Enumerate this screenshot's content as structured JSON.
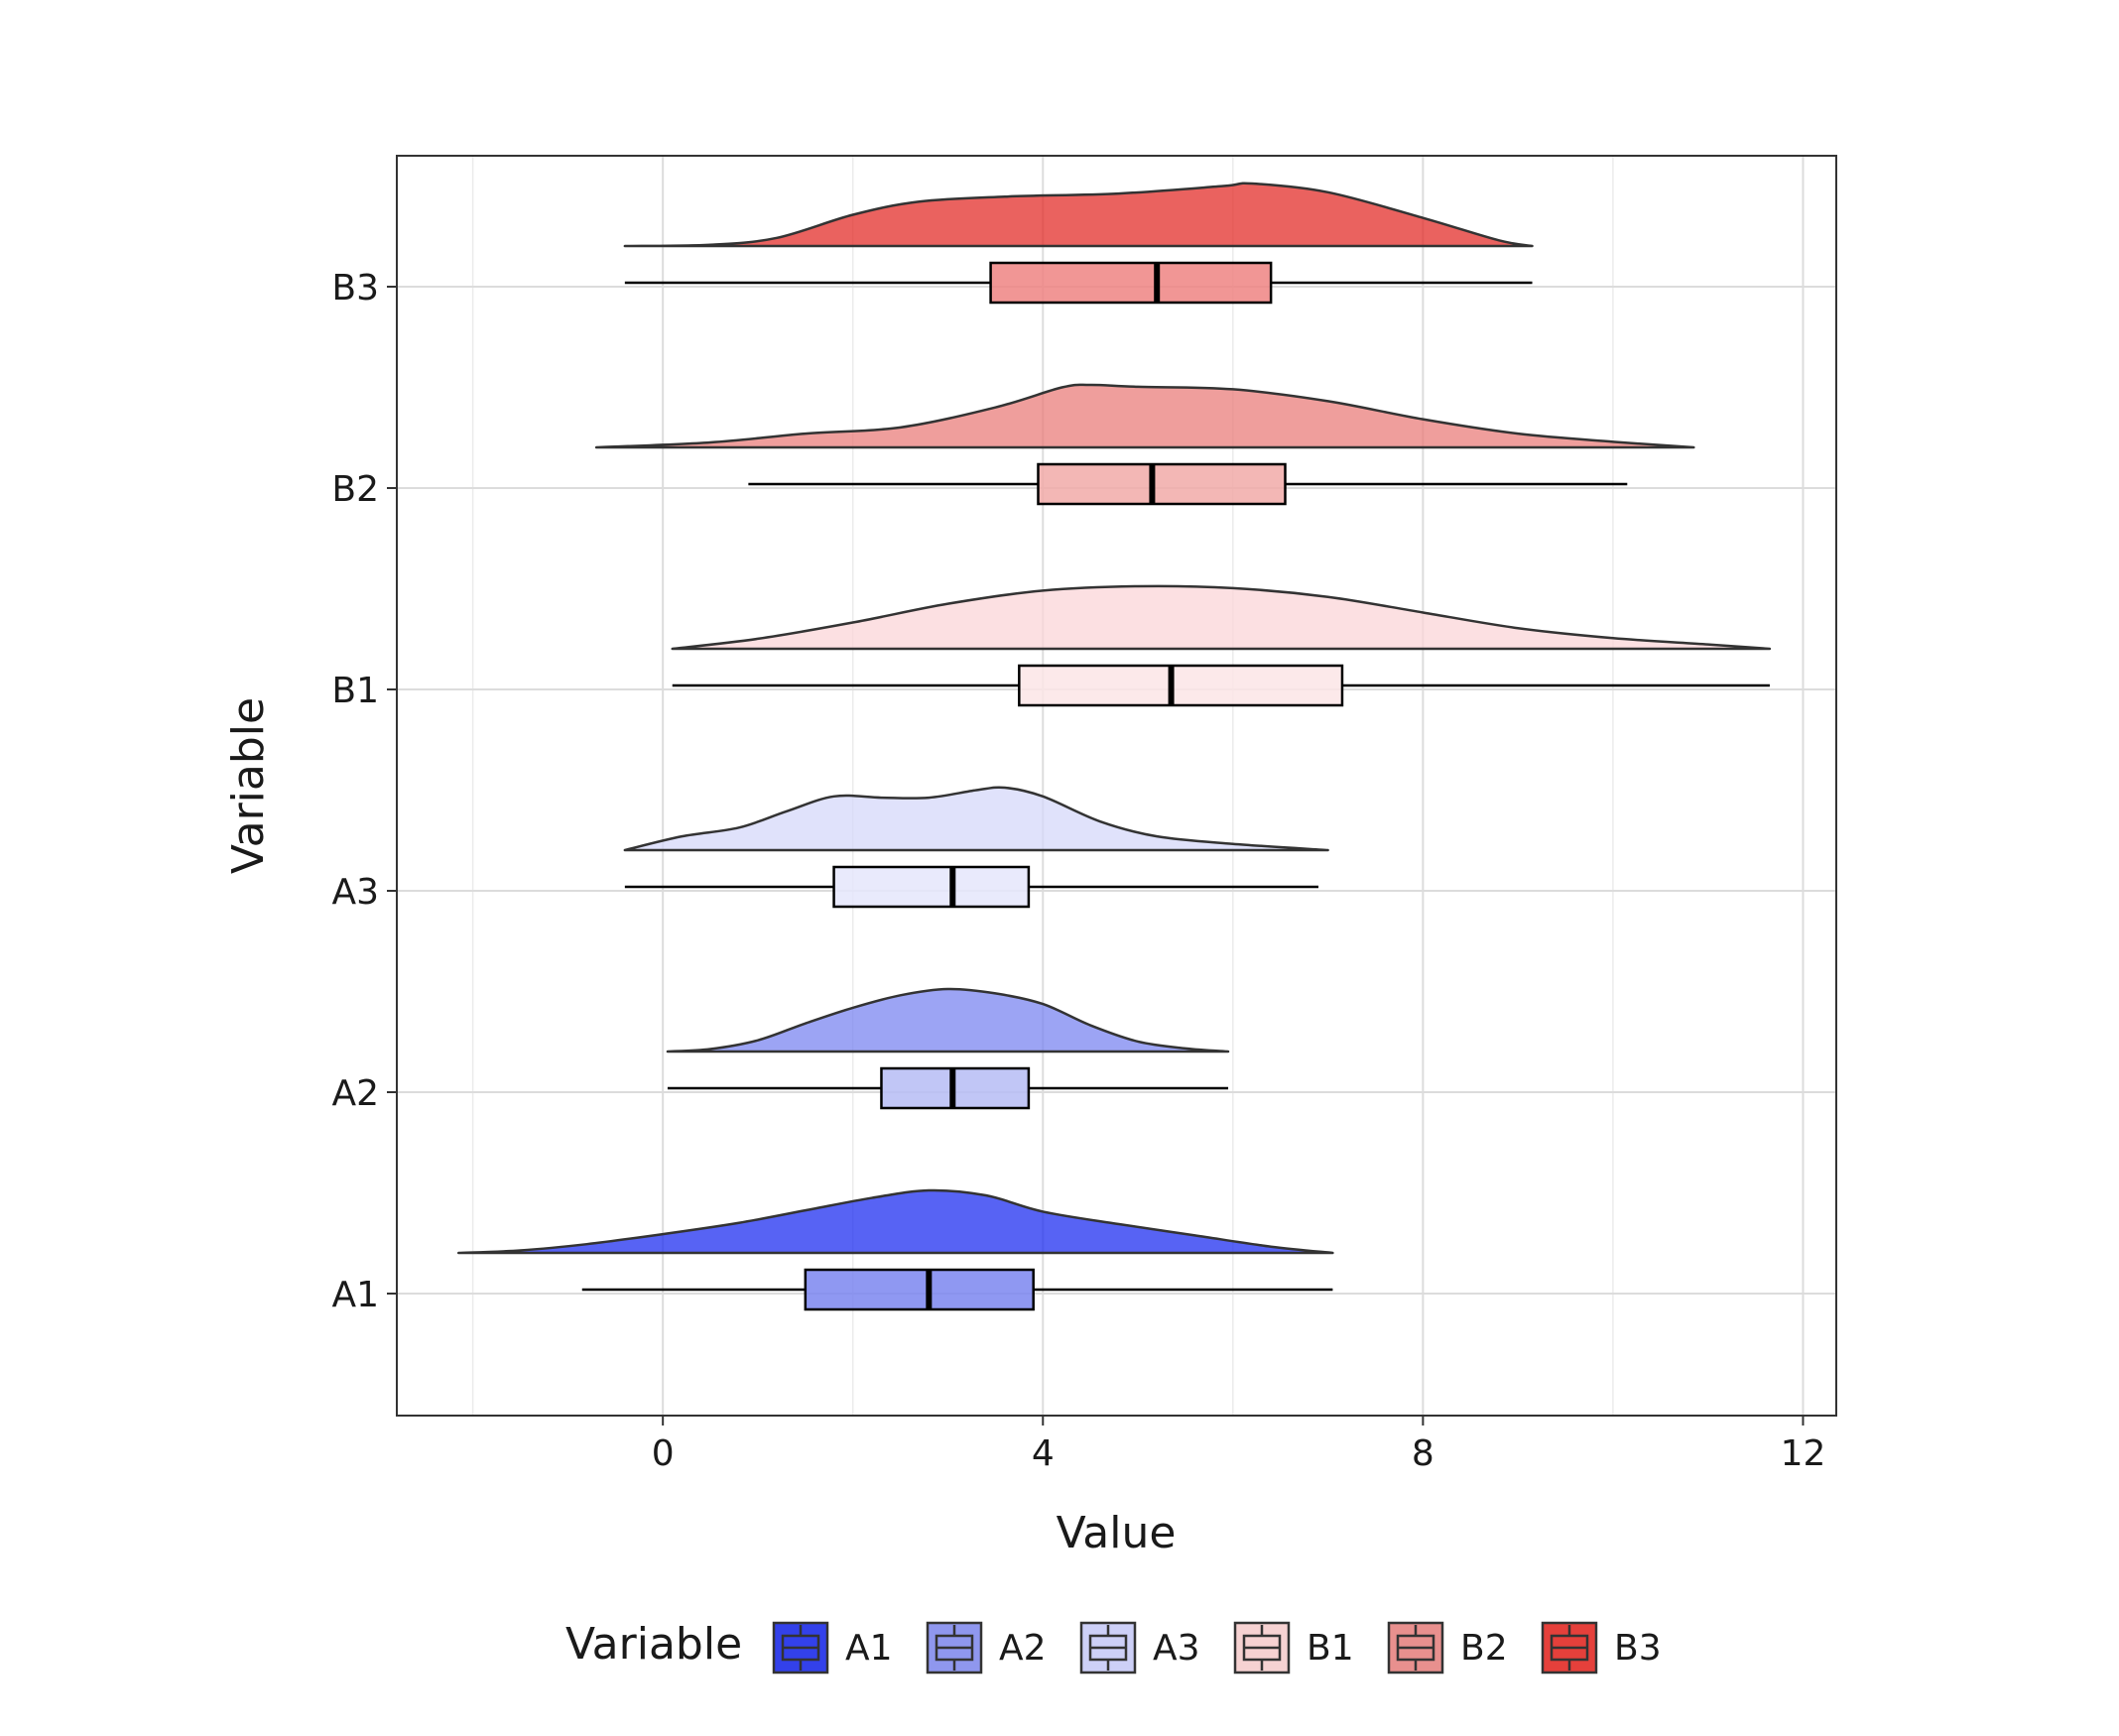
{
  "chart_data": {
    "type": "raincloud",
    "xlabel": "Value",
    "ylabel": "Variable",
    "xlim": [
      -2.8,
      12.35
    ],
    "x_ticks": [
      0,
      4,
      8,
      12
    ],
    "x_tick_labels": [
      "0",
      "4",
      "8",
      "12"
    ],
    "x_minor_gridlines": [
      -2,
      2,
      6,
      10
    ],
    "grid": true,
    "legend": {
      "title": "Variable",
      "position": "bottom",
      "items": [
        "A1",
        "A2",
        "A3",
        "B1",
        "B2",
        "B3"
      ]
    },
    "categories": [
      "A1",
      "A2",
      "A3",
      "B1",
      "B2",
      "B3"
    ],
    "series": [
      {
        "name": "A1",
        "density_color": "#1f2ff0",
        "box_color": "#7b86f0",
        "legend_color": "#3341ea",
        "box": {
          "whisker_low": -0.85,
          "q1": 1.5,
          "median": 2.8,
          "q3": 3.9,
          "whisker_high": 7.05
        },
        "density": [
          [
            -2.15,
            0.0
          ],
          [
            -1.5,
            0.04
          ],
          [
            -0.8,
            0.14
          ],
          [
            0.0,
            0.3
          ],
          [
            0.8,
            0.48
          ],
          [
            1.5,
            0.68
          ],
          [
            2.2,
            0.88
          ],
          [
            2.8,
            1.0
          ],
          [
            3.4,
            0.92
          ],
          [
            4.0,
            0.66
          ],
          [
            4.8,
            0.46
          ],
          [
            5.6,
            0.28
          ],
          [
            6.4,
            0.1
          ],
          [
            7.05,
            0.0
          ]
        ]
      },
      {
        "name": "A2",
        "density_color": "#7b86f0",
        "box_color": "#b6bcf5",
        "legend_color": "#8f97ee",
        "box": {
          "whisker_low": 0.05,
          "q1": 2.3,
          "median": 3.05,
          "q3": 3.85,
          "whisker_high": 5.95
        },
        "density": [
          [
            0.05,
            0.0
          ],
          [
            0.5,
            0.04
          ],
          [
            1.0,
            0.18
          ],
          [
            1.5,
            0.45
          ],
          [
            2.0,
            0.7
          ],
          [
            2.5,
            0.9
          ],
          [
            3.0,
            1.0
          ],
          [
            3.5,
            0.93
          ],
          [
            4.0,
            0.76
          ],
          [
            4.5,
            0.42
          ],
          [
            5.0,
            0.16
          ],
          [
            5.5,
            0.05
          ],
          [
            5.95,
            0.0
          ]
        ]
      },
      {
        "name": "A3",
        "density_color": "#d6d8fa",
        "box_color": "#e5e6fb",
        "legend_color": "#cdd0f7",
        "box": {
          "whisker_low": -0.4,
          "q1": 1.8,
          "median": 3.05,
          "q3": 3.85,
          "whisker_high": 6.9
        },
        "density": [
          [
            -0.4,
            0.0
          ],
          [
            0.2,
            0.22
          ],
          [
            0.8,
            0.36
          ],
          [
            1.3,
            0.62
          ],
          [
            1.8,
            0.86
          ],
          [
            2.3,
            0.84
          ],
          [
            2.8,
            0.84
          ],
          [
            3.3,
            0.96
          ],
          [
            3.6,
            1.0
          ],
          [
            4.0,
            0.86
          ],
          [
            4.6,
            0.46
          ],
          [
            5.2,
            0.22
          ],
          [
            6.0,
            0.1
          ],
          [
            7.0,
            0.0
          ]
        ]
      },
      {
        "name": "B1",
        "density_color": "#fbd6d8",
        "box_color": "#fbe5e6",
        "legend_color": "#f6d2d2",
        "box": {
          "whisker_low": 0.1,
          "q1": 3.75,
          "median": 5.35,
          "q3": 7.15,
          "whisker_high": 11.65
        },
        "density": [
          [
            0.1,
            0.0
          ],
          [
            1.0,
            0.16
          ],
          [
            2.0,
            0.42
          ],
          [
            3.0,
            0.72
          ],
          [
            4.0,
            0.93
          ],
          [
            5.0,
            1.0
          ],
          [
            6.0,
            0.97
          ],
          [
            7.0,
            0.83
          ],
          [
            8.0,
            0.58
          ],
          [
            9.0,
            0.33
          ],
          [
            10.0,
            0.17
          ],
          [
            11.0,
            0.07
          ],
          [
            11.65,
            0.0
          ]
        ]
      },
      {
        "name": "B2",
        "density_color": "#ea7d7b",
        "box_color": "#f1aaa8",
        "legend_color": "#e8908e",
        "box": {
          "whisker_low": 0.9,
          "q1": 3.95,
          "median": 5.15,
          "q3": 6.55,
          "whisker_high": 10.15
        },
        "density": [
          [
            -0.7,
            0.0
          ],
          [
            0.5,
            0.08
          ],
          [
            1.5,
            0.22
          ],
          [
            2.5,
            0.32
          ],
          [
            3.5,
            0.64
          ],
          [
            4.2,
            0.96
          ],
          [
            4.5,
            1.0
          ],
          [
            5.0,
            0.97
          ],
          [
            6.0,
            0.93
          ],
          [
            7.0,
            0.74
          ],
          [
            8.0,
            0.45
          ],
          [
            9.0,
            0.22
          ],
          [
            10.0,
            0.09
          ],
          [
            10.85,
            0.0
          ]
        ]
      },
      {
        "name": "B3",
        "density_color": "#e32e2a",
        "box_color": "#ef8482",
        "legend_color": "#e5403b",
        "box": {
          "whisker_low": -0.4,
          "q1": 3.45,
          "median": 5.2,
          "q3": 6.4,
          "whisker_high": 9.15
        },
        "density": [
          [
            -0.4,
            0.0
          ],
          [
            0.5,
            0.02
          ],
          [
            1.2,
            0.13
          ],
          [
            2.0,
            0.5
          ],
          [
            2.7,
            0.71
          ],
          [
            3.6,
            0.79
          ],
          [
            4.8,
            0.84
          ],
          [
            5.9,
            0.96
          ],
          [
            6.2,
            1.0
          ],
          [
            7.0,
            0.86
          ],
          [
            8.0,
            0.45
          ],
          [
            8.8,
            0.09
          ],
          [
            9.15,
            0.0
          ]
        ]
      }
    ]
  }
}
